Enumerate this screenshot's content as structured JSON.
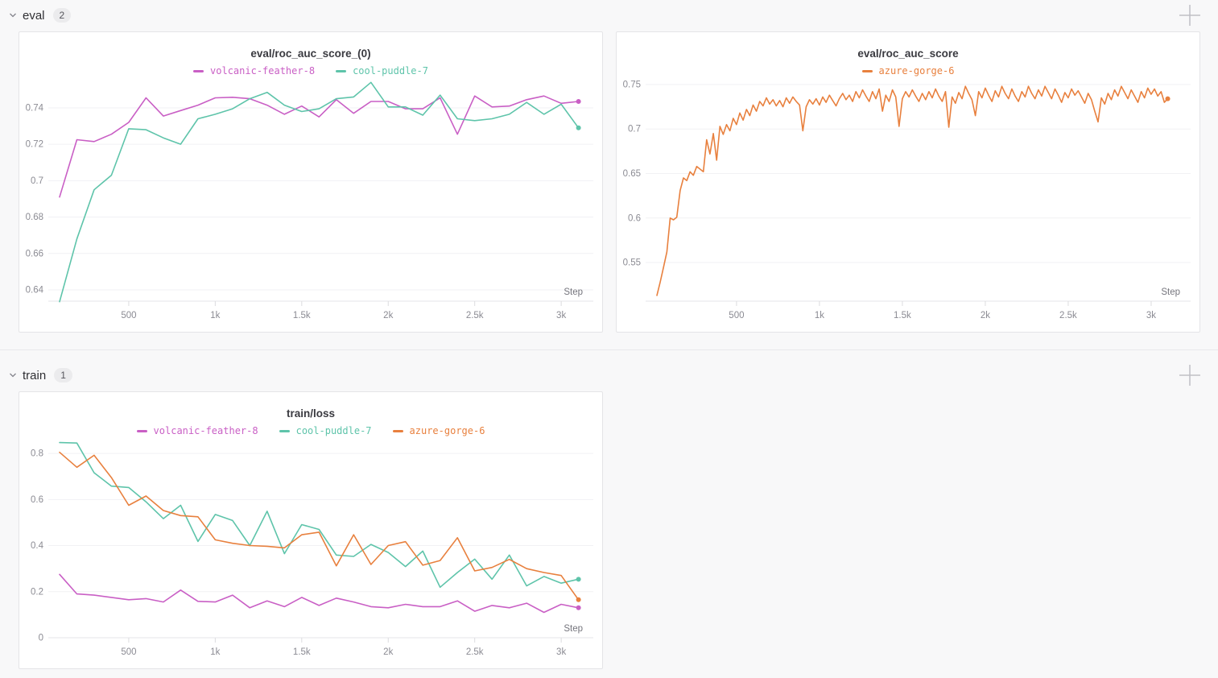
{
  "page": {
    "background": "#f8f8f9"
  },
  "sections": [
    {
      "label": "eval",
      "count": "2"
    },
    {
      "label": "train",
      "count": "1"
    }
  ],
  "chart_data": [
    {
      "type": "line",
      "title": "eval/roc_auc_score_(0)",
      "xlabel": "Step",
      "grid": true,
      "legend_position": "top",
      "xlim": [
        35,
        3125
      ],
      "ylim": [
        0.6338,
        0.7559
      ],
      "x_ticks": [
        500,
        1000,
        1500,
        2000,
        2500,
        3000
      ],
      "x_tick_labels": [
        "500",
        "1k",
        "1.5k",
        "2k",
        "2.5k",
        "3k"
      ],
      "y_ticks": [
        0.64,
        0.66,
        0.68,
        0.7,
        0.72,
        0.74
      ],
      "y_tick_labels": [
        "0.64",
        "0.66",
        "0.68",
        "0.7",
        "0.72",
        "0.74"
      ],
      "x": [
        100,
        200,
        300,
        400,
        500,
        600,
        700,
        800,
        900,
        1000,
        1100,
        1200,
        1300,
        1400,
        1500,
        1600,
        1700,
        1800,
        1900,
        2000,
        2100,
        2200,
        2300,
        2400,
        2500,
        2600,
        2700,
        2800,
        2900,
        3000,
        3100
      ],
      "series": [
        {
          "name": "volcanic-feather-8",
          "color": "#C95FC5",
          "values": [
            0.691,
            0.7225,
            0.7215,
            0.7255,
            0.732,
            0.7455,
            0.7355,
            0.7385,
            0.7415,
            0.7455,
            0.7458,
            0.745,
            0.7415,
            0.7365,
            0.741,
            0.735,
            0.7445,
            0.737,
            0.7435,
            0.7435,
            0.7395,
            0.7395,
            0.7455,
            0.7255,
            0.7465,
            0.7405,
            0.741,
            0.7445,
            0.7465,
            0.7425,
            0.7435
          ]
        },
        {
          "name": "cool-puddle-7",
          "color": "#5EC4AA",
          "values": [
            0.6335,
            0.668,
            0.695,
            0.703,
            0.7285,
            0.728,
            0.7235,
            0.72,
            0.734,
            0.7365,
            0.7395,
            0.745,
            0.7485,
            0.7415,
            0.738,
            0.7395,
            0.745,
            0.746,
            0.754,
            0.7405,
            0.7405,
            0.736,
            0.747,
            0.734,
            0.733,
            0.734,
            0.7365,
            0.743,
            0.7365,
            0.742,
            0.729
          ]
        }
      ]
    },
    {
      "type": "line",
      "title": "eval/roc_auc_score",
      "xlabel": "Step",
      "grid": true,
      "legend_position": "top",
      "xlim": [
        -48,
        3175
      ],
      "ylim": [
        0.5066,
        0.7563
      ],
      "x_ticks": [
        500,
        1000,
        1500,
        2000,
        2500,
        3000
      ],
      "x_tick_labels": [
        "500",
        "1k",
        "1.5k",
        "2k",
        "2.5k",
        "3k"
      ],
      "y_ticks": [
        0.55,
        0.6,
        0.65,
        0.7,
        0.75
      ],
      "y_tick_labels": [
        "0.55",
        "0.6",
        "0.65",
        "0.7",
        "0.75"
      ],
      "x": [
        20,
        40,
        60,
        80,
        100,
        120,
        140,
        160,
        180,
        200,
        220,
        240,
        260,
        280,
        300,
        320,
        340,
        360,
        380,
        400,
        420,
        440,
        460,
        480,
        500,
        520,
        540,
        560,
        580,
        600,
        620,
        640,
        660,
        680,
        700,
        720,
        740,
        760,
        780,
        800,
        820,
        840,
        860,
        880,
        900,
        920,
        940,
        960,
        980,
        1000,
        1020,
        1040,
        1060,
        1080,
        1100,
        1120,
        1140,
        1160,
        1180,
        1200,
        1220,
        1240,
        1260,
        1280,
        1300,
        1320,
        1340,
        1360,
        1380,
        1400,
        1420,
        1440,
        1460,
        1480,
        1500,
        1520,
        1540,
        1560,
        1580,
        1600,
        1620,
        1640,
        1660,
        1680,
        1700,
        1720,
        1740,
        1760,
        1780,
        1800,
        1820,
        1840,
        1860,
        1880,
        1900,
        1920,
        1940,
        1960,
        1980,
        2000,
        2020,
        2040,
        2060,
        2080,
        2100,
        2120,
        2140,
        2160,
        2180,
        2200,
        2220,
        2240,
        2260,
        2280,
        2300,
        2320,
        2340,
        2360,
        2380,
        2400,
        2420,
        2440,
        2460,
        2480,
        2500,
        2520,
        2540,
        2560,
        2580,
        2600,
        2620,
        2640,
        2660,
        2680,
        2700,
        2720,
        2740,
        2760,
        2780,
        2800,
        2820,
        2840,
        2860,
        2880,
        2900,
        2920,
        2940,
        2960,
        2980,
        3000,
        3020,
        3040,
        3060,
        3080,
        3100
      ],
      "series": [
        {
          "name": "azure-gorge-6",
          "color": "#E8803E",
          "values": [
            0.513,
            0.528,
            0.545,
            0.562,
            0.6,
            0.598,
            0.601,
            0.631,
            0.645,
            0.642,
            0.652,
            0.648,
            0.658,
            0.655,
            0.652,
            0.688,
            0.672,
            0.695,
            0.665,
            0.703,
            0.694,
            0.705,
            0.698,
            0.712,
            0.705,
            0.718,
            0.71,
            0.722,
            0.715,
            0.727,
            0.72,
            0.731,
            0.726,
            0.735,
            0.728,
            0.733,
            0.726,
            0.732,
            0.725,
            0.735,
            0.729,
            0.736,
            0.731,
            0.727,
            0.698,
            0.725,
            0.733,
            0.728,
            0.734,
            0.727,
            0.736,
            0.73,
            0.738,
            0.732,
            0.726,
            0.734,
            0.74,
            0.733,
            0.738,
            0.731,
            0.742,
            0.735,
            0.744,
            0.737,
            0.731,
            0.742,
            0.734,
            0.745,
            0.72,
            0.738,
            0.731,
            0.744,
            0.736,
            0.703,
            0.734,
            0.742,
            0.736,
            0.744,
            0.737,
            0.731,
            0.74,
            0.733,
            0.742,
            0.735,
            0.745,
            0.737,
            0.731,
            0.742,
            0.702,
            0.736,
            0.729,
            0.741,
            0.734,
            0.748,
            0.74,
            0.733,
            0.715,
            0.742,
            0.735,
            0.746,
            0.738,
            0.731,
            0.743,
            0.736,
            0.748,
            0.74,
            0.734,
            0.745,
            0.737,
            0.731,
            0.742,
            0.736,
            0.748,
            0.74,
            0.734,
            0.744,
            0.737,
            0.748,
            0.741,
            0.734,
            0.745,
            0.738,
            0.73,
            0.741,
            0.735,
            0.745,
            0.738,
            0.743,
            0.736,
            0.729,
            0.74,
            0.733,
            0.72,
            0.708,
            0.735,
            0.728,
            0.74,
            0.733,
            0.744,
            0.737,
            0.748,
            0.741,
            0.734,
            0.744,
            0.737,
            0.73,
            0.742,
            0.735,
            0.746,
            0.739,
            0.745,
            0.737,
            0.742,
            0.73,
            0.734
          ]
        }
      ]
    },
    {
      "type": "line",
      "title": "train/loss",
      "xlabel": "Step",
      "grid": true,
      "legend_position": "top",
      "xlim": [
        35,
        3125
      ],
      "ylim": [
        0,
        0.8632
      ],
      "x_ticks": [
        500,
        1000,
        1500,
        2000,
        2500,
        3000
      ],
      "x_tick_labels": [
        "500",
        "1k",
        "1.5k",
        "2k",
        "2.5k",
        "3k"
      ],
      "y_ticks": [
        0,
        0.2,
        0.4,
        0.6,
        0.8
      ],
      "y_tick_labels": [
        "0",
        "0.2",
        "0.4",
        "0.6",
        "0.8"
      ],
      "x": [
        100,
        200,
        300,
        400,
        500,
        600,
        700,
        800,
        900,
        1000,
        1100,
        1200,
        1300,
        1400,
        1500,
        1600,
        1700,
        1800,
        1900,
        2000,
        2100,
        2200,
        2300,
        2400,
        2500,
        2600,
        2700,
        2800,
        2900,
        3000,
        3100
      ],
      "series": [
        {
          "name": "volcanic-feather-8",
          "color": "#C95FC5",
          "values": [
            0.275,
            0.19,
            0.185,
            0.175,
            0.165,
            0.17,
            0.155,
            0.207,
            0.158,
            0.155,
            0.185,
            0.13,
            0.16,
            0.135,
            0.175,
            0.14,
            0.172,
            0.155,
            0.135,
            0.13,
            0.145,
            0.135,
            0.135,
            0.16,
            0.115,
            0.14,
            0.13,
            0.15,
            0.11,
            0.145,
            0.13
          ]
        },
        {
          "name": "cool-puddle-7",
          "color": "#5EC4AA",
          "values": [
            0.847,
            0.845,
            0.716,
            0.658,
            0.652,
            0.59,
            0.517,
            0.575,
            0.418,
            0.535,
            0.509,
            0.4,
            0.549,
            0.365,
            0.491,
            0.47,
            0.359,
            0.353,
            0.405,
            0.37,
            0.309,
            0.376,
            0.219,
            0.283,
            0.341,
            0.254,
            0.359,
            0.225,
            0.266,
            0.237,
            0.254
          ]
        },
        {
          "name": "azure-gorge-6",
          "color": "#E8803E",
          "values": [
            0.805,
            0.74,
            0.792,
            0.695,
            0.575,
            0.615,
            0.552,
            0.53,
            0.525,
            0.425,
            0.41,
            0.4,
            0.397,
            0.39,
            0.447,
            0.458,
            0.312,
            0.447,
            0.318,
            0.4,
            0.417,
            0.315,
            0.335,
            0.434,
            0.29,
            0.305,
            0.34,
            0.3,
            0.283,
            0.27,
            0.165
          ]
        }
      ]
    }
  ]
}
